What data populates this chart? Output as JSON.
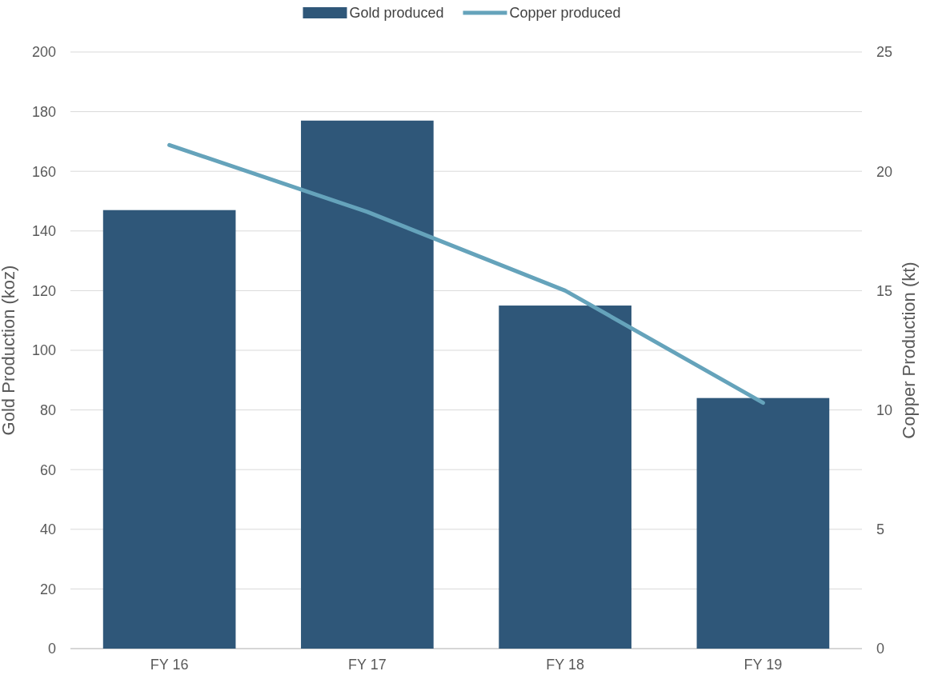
{
  "chart_data": {
    "type": "bar",
    "categories": [
      "FY 16",
      "FY 17",
      "FY 18",
      "FY 19"
    ],
    "series": [
      {
        "name": "Gold produced",
        "color": "#2f5779",
        "values": [
          147,
          177,
          115,
          84
        ]
      },
      {
        "name": "Copper produced",
        "type": "line",
        "axis": "y2",
        "color": "#65a3bb",
        "values": [
          21.1,
          18.3,
          15.0,
          10.3
        ]
      }
    ],
    "ylabel": "Gold Production (koz)",
    "y2label": "Copper Production (kt)",
    "ylim": [
      0,
      200
    ],
    "yticks": [
      0,
      20,
      40,
      60,
      80,
      100,
      120,
      140,
      160,
      180,
      200
    ],
    "y2lim": [
      0,
      25
    ],
    "y2ticks": [
      0,
      5,
      10,
      15,
      20,
      25
    ],
    "grid": "y",
    "legend": "top",
    "marker": "none",
    "line_style": "solid"
  }
}
